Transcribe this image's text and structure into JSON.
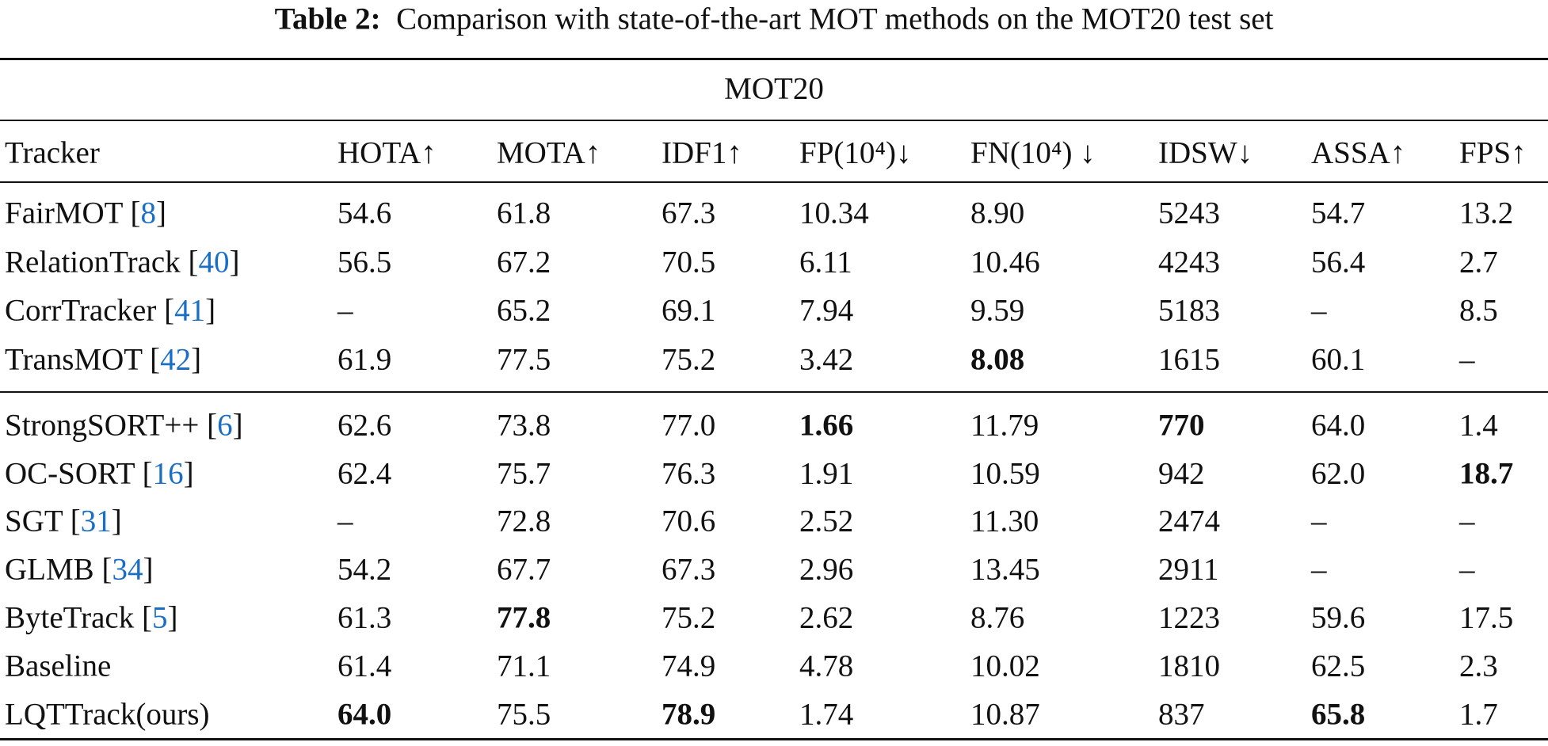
{
  "caption": {
    "label": "Table 2:",
    "text": "Comparison with state-of-the-art MOT methods on the MOT20 test set"
  },
  "table": {
    "group": "MOT20",
    "columns": [
      "Tracker",
      "HOTA↑",
      "MOTA↑",
      "IDF1↑",
      "FP(10⁴)↓",
      "FN(10⁴) ↓",
      "IDSW↓",
      "ASSA↑",
      "FPS↑"
    ],
    "sections": [
      [
        {
          "name": "FairMOT",
          "ref": "8",
          "cells": [
            "54.6",
            "61.8",
            "67.3",
            "10.34",
            "8.90",
            "5243",
            "54.7",
            "13.2"
          ],
          "bold": []
        },
        {
          "name": "RelationTrack",
          "ref": "40",
          "cells": [
            "56.5",
            "67.2",
            "70.5",
            "6.11",
            "10.46",
            "4243",
            "56.4",
            "2.7"
          ],
          "bold": []
        },
        {
          "name": "CorrTracker",
          "ref": "41",
          "cells": [
            "–",
            "65.2",
            "69.1",
            "7.94",
            "9.59",
            "5183",
            "–",
            "8.5"
          ],
          "bold": []
        },
        {
          "name": "TransMOT",
          "ref": "42",
          "cells": [
            "61.9",
            "77.5",
            "75.2",
            "3.42",
            "8.08",
            "1615",
            "60.1",
            "–"
          ],
          "bold": [
            4
          ]
        }
      ],
      [
        {
          "name": "StrongSORT++",
          "ref": "6",
          "cells": [
            "62.6",
            "73.8",
            "77.0",
            "1.66",
            "11.79",
            "770",
            "64.0",
            "1.4"
          ],
          "bold": [
            3,
            5
          ]
        },
        {
          "name": "OC-SORT",
          "ref": "16",
          "cells": [
            "62.4",
            "75.7",
            "76.3",
            "1.91",
            "10.59",
            "942",
            "62.0",
            "18.7"
          ],
          "bold": [
            7
          ]
        },
        {
          "name": "SGT",
          "ref": "31",
          "cells": [
            "–",
            "72.8",
            "70.6",
            "2.52",
            "11.30",
            "2474",
            "–",
            "–"
          ],
          "bold": []
        },
        {
          "name": "GLMB",
          "ref": "34",
          "cells": [
            "54.2",
            "67.7",
            "67.3",
            "2.96",
            "13.45",
            "2911",
            "–",
            "–"
          ],
          "bold": []
        },
        {
          "name": "ByteTrack",
          "ref": "5",
          "cells": [
            "61.3",
            "77.8",
            "75.2",
            "2.62",
            "8.76",
            "1223",
            "59.6",
            "17.5"
          ],
          "bold": [
            1
          ]
        },
        {
          "name": "Baseline",
          "cells": [
            "61.4",
            "71.1",
            "74.9",
            "4.78",
            "10.02",
            "1810",
            "62.5",
            "2.3"
          ],
          "bold": []
        },
        {
          "name": "LQTTrack(ours)",
          "cells": [
            "64.0",
            "75.5",
            "78.9",
            "1.74",
            "10.87",
            "837",
            "65.8",
            "1.7"
          ],
          "bold": [
            0,
            2,
            6
          ]
        }
      ]
    ]
  }
}
